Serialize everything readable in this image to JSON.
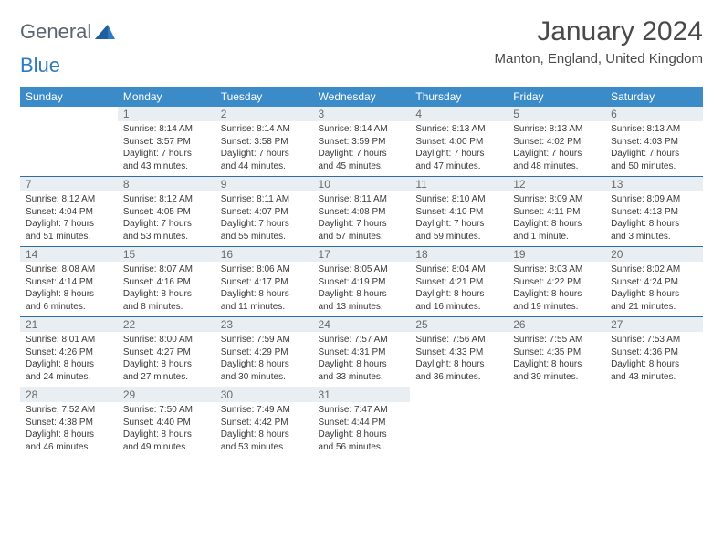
{
  "brand": {
    "part1": "General",
    "part2": "Blue"
  },
  "title": "January 2024",
  "location": "Manton, England, United Kingdom",
  "colors": {
    "header_bg": "#3b8bc9",
    "header_text": "#ffffff",
    "row_divider": "#2d6da8",
    "daynum_bg": "#e9eef2",
    "body_text": "#3a3a3a",
    "title_text": "#4a4a4a"
  },
  "typography": {
    "title_fontsize": 30,
    "location_fontsize": 15,
    "weekday_fontsize": 12,
    "daynum_fontsize": 12,
    "info_fontsize": 10
  },
  "weekdays": [
    "Sunday",
    "Monday",
    "Tuesday",
    "Wednesday",
    "Thursday",
    "Friday",
    "Saturday"
  ],
  "weeks": [
    [
      {
        "day": "",
        "sunrise": "",
        "sunset": "",
        "daylight1": "",
        "daylight2": ""
      },
      {
        "day": "1",
        "sunrise": "Sunrise: 8:14 AM",
        "sunset": "Sunset: 3:57 PM",
        "daylight1": "Daylight: 7 hours",
        "daylight2": "and 43 minutes."
      },
      {
        "day": "2",
        "sunrise": "Sunrise: 8:14 AM",
        "sunset": "Sunset: 3:58 PM",
        "daylight1": "Daylight: 7 hours",
        "daylight2": "and 44 minutes."
      },
      {
        "day": "3",
        "sunrise": "Sunrise: 8:14 AM",
        "sunset": "Sunset: 3:59 PM",
        "daylight1": "Daylight: 7 hours",
        "daylight2": "and 45 minutes."
      },
      {
        "day": "4",
        "sunrise": "Sunrise: 8:13 AM",
        "sunset": "Sunset: 4:00 PM",
        "daylight1": "Daylight: 7 hours",
        "daylight2": "and 47 minutes."
      },
      {
        "day": "5",
        "sunrise": "Sunrise: 8:13 AM",
        "sunset": "Sunset: 4:02 PM",
        "daylight1": "Daylight: 7 hours",
        "daylight2": "and 48 minutes."
      },
      {
        "day": "6",
        "sunrise": "Sunrise: 8:13 AM",
        "sunset": "Sunset: 4:03 PM",
        "daylight1": "Daylight: 7 hours",
        "daylight2": "and 50 minutes."
      }
    ],
    [
      {
        "day": "7",
        "sunrise": "Sunrise: 8:12 AM",
        "sunset": "Sunset: 4:04 PM",
        "daylight1": "Daylight: 7 hours",
        "daylight2": "and 51 minutes."
      },
      {
        "day": "8",
        "sunrise": "Sunrise: 8:12 AM",
        "sunset": "Sunset: 4:05 PM",
        "daylight1": "Daylight: 7 hours",
        "daylight2": "and 53 minutes."
      },
      {
        "day": "9",
        "sunrise": "Sunrise: 8:11 AM",
        "sunset": "Sunset: 4:07 PM",
        "daylight1": "Daylight: 7 hours",
        "daylight2": "and 55 minutes."
      },
      {
        "day": "10",
        "sunrise": "Sunrise: 8:11 AM",
        "sunset": "Sunset: 4:08 PM",
        "daylight1": "Daylight: 7 hours",
        "daylight2": "and 57 minutes."
      },
      {
        "day": "11",
        "sunrise": "Sunrise: 8:10 AM",
        "sunset": "Sunset: 4:10 PM",
        "daylight1": "Daylight: 7 hours",
        "daylight2": "and 59 minutes."
      },
      {
        "day": "12",
        "sunrise": "Sunrise: 8:09 AM",
        "sunset": "Sunset: 4:11 PM",
        "daylight1": "Daylight: 8 hours",
        "daylight2": "and 1 minute."
      },
      {
        "day": "13",
        "sunrise": "Sunrise: 8:09 AM",
        "sunset": "Sunset: 4:13 PM",
        "daylight1": "Daylight: 8 hours",
        "daylight2": "and 3 minutes."
      }
    ],
    [
      {
        "day": "14",
        "sunrise": "Sunrise: 8:08 AM",
        "sunset": "Sunset: 4:14 PM",
        "daylight1": "Daylight: 8 hours",
        "daylight2": "and 6 minutes."
      },
      {
        "day": "15",
        "sunrise": "Sunrise: 8:07 AM",
        "sunset": "Sunset: 4:16 PM",
        "daylight1": "Daylight: 8 hours",
        "daylight2": "and 8 minutes."
      },
      {
        "day": "16",
        "sunrise": "Sunrise: 8:06 AM",
        "sunset": "Sunset: 4:17 PM",
        "daylight1": "Daylight: 8 hours",
        "daylight2": "and 11 minutes."
      },
      {
        "day": "17",
        "sunrise": "Sunrise: 8:05 AM",
        "sunset": "Sunset: 4:19 PM",
        "daylight1": "Daylight: 8 hours",
        "daylight2": "and 13 minutes."
      },
      {
        "day": "18",
        "sunrise": "Sunrise: 8:04 AM",
        "sunset": "Sunset: 4:21 PM",
        "daylight1": "Daylight: 8 hours",
        "daylight2": "and 16 minutes."
      },
      {
        "day": "19",
        "sunrise": "Sunrise: 8:03 AM",
        "sunset": "Sunset: 4:22 PM",
        "daylight1": "Daylight: 8 hours",
        "daylight2": "and 19 minutes."
      },
      {
        "day": "20",
        "sunrise": "Sunrise: 8:02 AM",
        "sunset": "Sunset: 4:24 PM",
        "daylight1": "Daylight: 8 hours",
        "daylight2": "and 21 minutes."
      }
    ],
    [
      {
        "day": "21",
        "sunrise": "Sunrise: 8:01 AM",
        "sunset": "Sunset: 4:26 PM",
        "daylight1": "Daylight: 8 hours",
        "daylight2": "and 24 minutes."
      },
      {
        "day": "22",
        "sunrise": "Sunrise: 8:00 AM",
        "sunset": "Sunset: 4:27 PM",
        "daylight1": "Daylight: 8 hours",
        "daylight2": "and 27 minutes."
      },
      {
        "day": "23",
        "sunrise": "Sunrise: 7:59 AM",
        "sunset": "Sunset: 4:29 PM",
        "daylight1": "Daylight: 8 hours",
        "daylight2": "and 30 minutes."
      },
      {
        "day": "24",
        "sunrise": "Sunrise: 7:57 AM",
        "sunset": "Sunset: 4:31 PM",
        "daylight1": "Daylight: 8 hours",
        "daylight2": "and 33 minutes."
      },
      {
        "day": "25",
        "sunrise": "Sunrise: 7:56 AM",
        "sunset": "Sunset: 4:33 PM",
        "daylight1": "Daylight: 8 hours",
        "daylight2": "and 36 minutes."
      },
      {
        "day": "26",
        "sunrise": "Sunrise: 7:55 AM",
        "sunset": "Sunset: 4:35 PM",
        "daylight1": "Daylight: 8 hours",
        "daylight2": "and 39 minutes."
      },
      {
        "day": "27",
        "sunrise": "Sunrise: 7:53 AM",
        "sunset": "Sunset: 4:36 PM",
        "daylight1": "Daylight: 8 hours",
        "daylight2": "and 43 minutes."
      }
    ],
    [
      {
        "day": "28",
        "sunrise": "Sunrise: 7:52 AM",
        "sunset": "Sunset: 4:38 PM",
        "daylight1": "Daylight: 8 hours",
        "daylight2": "and 46 minutes."
      },
      {
        "day": "29",
        "sunrise": "Sunrise: 7:50 AM",
        "sunset": "Sunset: 4:40 PM",
        "daylight1": "Daylight: 8 hours",
        "daylight2": "and 49 minutes."
      },
      {
        "day": "30",
        "sunrise": "Sunrise: 7:49 AM",
        "sunset": "Sunset: 4:42 PM",
        "daylight1": "Daylight: 8 hours",
        "daylight2": "and 53 minutes."
      },
      {
        "day": "31",
        "sunrise": "Sunrise: 7:47 AM",
        "sunset": "Sunset: 4:44 PM",
        "daylight1": "Daylight: 8 hours",
        "daylight2": "and 56 minutes."
      },
      {
        "day": "",
        "sunrise": "",
        "sunset": "",
        "daylight1": "",
        "daylight2": ""
      },
      {
        "day": "",
        "sunrise": "",
        "sunset": "",
        "daylight1": "",
        "daylight2": ""
      },
      {
        "day": "",
        "sunrise": "",
        "sunset": "",
        "daylight1": "",
        "daylight2": ""
      }
    ]
  ]
}
